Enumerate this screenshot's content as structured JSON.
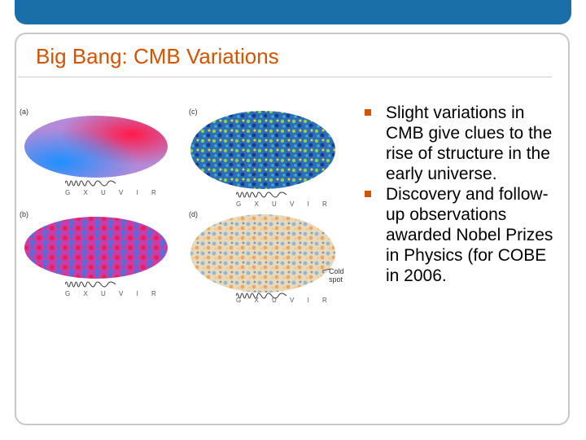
{
  "slide": {
    "title": "Big Bang: CMB Variations",
    "bullets": [
      "Slight variations in CMB give clues to the rise of structure in the early universe.",
      "Discovery and follow-up observations awarded Nobel Prizes in Physics (for COBE in 2006."
    ]
  },
  "figure": {
    "panels": [
      {
        "label": "(a)",
        "axis": "G X U V I R"
      },
      {
        "label": "(b)",
        "axis": "G X U V I R"
      },
      {
        "label": "(c)",
        "axis": "G X U V I R"
      },
      {
        "label": "(d)",
        "axis": "G X U V I R"
      }
    ],
    "cold_spot_label_1": "Cold",
    "cold_spot_label_2": "spot"
  },
  "colors": {
    "accent": "#d35400",
    "band": "#1a6fa8"
  }
}
